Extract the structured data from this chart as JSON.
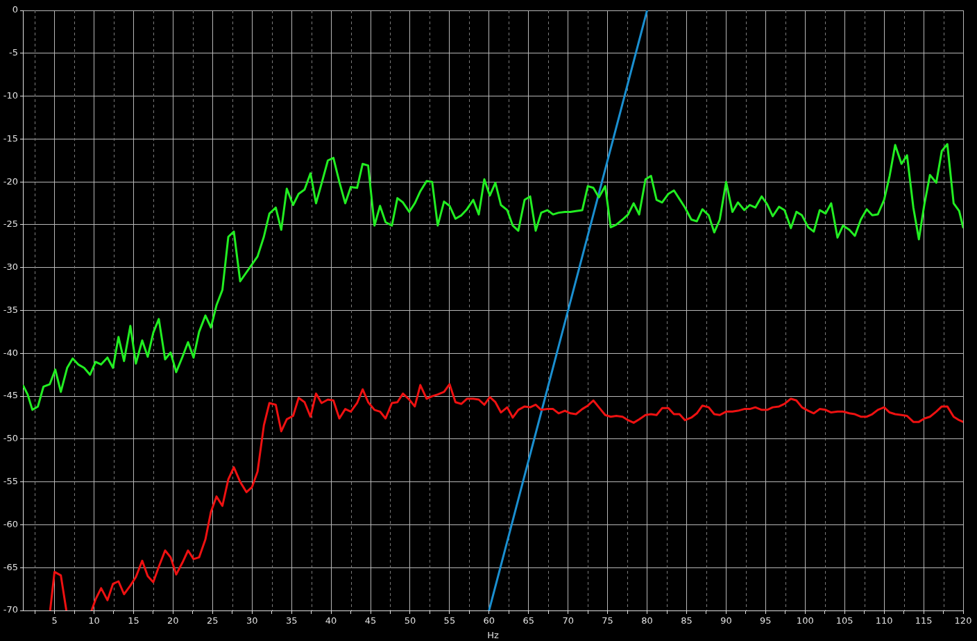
{
  "chart_data": {
    "type": "line",
    "xlabel": "Hz",
    "xlim": [
      1,
      120
    ],
    "ylim": [
      -70,
      0
    ],
    "xticks": [
      {
        "value": 2.5,
        "label": null
      },
      5,
      {
        "value": 7.5,
        "label": null
      },
      10,
      {
        "value": 12.5,
        "label": null
      },
      15,
      {
        "value": 17.5,
        "label": null
      },
      20,
      {
        "value": 22.5,
        "label": null
      },
      25,
      {
        "value": 27.5,
        "label": null
      },
      30,
      {
        "value": 32.5,
        "label": null
      },
      35,
      {
        "value": 37.5,
        "label": null
      },
      40,
      {
        "value": 42.5,
        "label": null
      },
      45,
      {
        "value": 47.5,
        "label": null
      },
      50,
      {
        "value": 52.5,
        "label": null
      },
      55,
      {
        "value": 57.5,
        "label": null
      },
      60,
      {
        "value": 62.5,
        "label": null
      },
      65,
      {
        "value": 67.5,
        "label": null
      },
      70,
      {
        "value": 72.5,
        "label": null
      },
      75,
      {
        "value": 77.5,
        "label": null
      },
      80,
      {
        "value": 82.5,
        "label": null
      },
      85,
      {
        "value": 87.5,
        "label": null
      },
      90,
      {
        "value": 92.5,
        "label": null
      },
      95,
      {
        "value": 97.5,
        "label": null
      },
      100,
      {
        "value": 102.5,
        "label": null
      },
      105,
      {
        "value": 107.5,
        "label": null
      },
      110,
      {
        "value": 112.5,
        "label": null
      },
      115,
      {
        "value": 117.5,
        "label": null
      },
      120
    ],
    "yticks": [
      0,
      -5,
      -10,
      -15,
      -20,
      -25,
      -30,
      -35,
      -40,
      -45,
      -50,
      -55,
      -60,
      -65,
      -70
    ],
    "grid": true,
    "legend": false,
    "marker": "none",
    "line_style": "solid",
    "series": [
      {
        "color": "#22ee22",
        "x": [
          1.05,
          1.6,
          2.2,
          2.9,
          3.6,
          4.4,
          5.1,
          5.8,
          6.6,
          7.3,
          8.0,
          8.75,
          9.5,
          10.2,
          10.9,
          11.7,
          12.4,
          13.1,
          13.8,
          14.6,
          15.3,
          16.1,
          16.8,
          17.5,
          18.2,
          19.0,
          19.7,
          20.4,
          21.2,
          21.9,
          22.6,
          23.3,
          24.1,
          24.8,
          25.5,
          26.25,
          27.0,
          27.7,
          28.5,
          30.7,
          31.5,
          32.2,
          33.0,
          33.7,
          34.4,
          35.2,
          35.9,
          36.65,
          37.4,
          38.1,
          38.8,
          39.6,
          40.3,
          41.05,
          41.8,
          42.5,
          43.3,
          44.0,
          44.7,
          45.5,
          46.2,
          46.9,
          47.7,
          48.4,
          49.1,
          49.9,
          50.6,
          51.3,
          52.1,
          52.8,
          53.5,
          54.3,
          55.0,
          55.75,
          56.5,
          57.2,
          58.0,
          58.7,
          59.4,
          60.1,
          60.8,
          61.5,
          62.3,
          63.0,
          63.7,
          64.5,
          65.2,
          65.9,
          66.6,
          67.4,
          68.1,
          68.8,
          69.6,
          70.3,
          71.0,
          71.8,
          72.5,
          73.2,
          73.9,
          74.7,
          75.4,
          76.1,
          76.9,
          77.6,
          78.3,
          79.0,
          79.8,
          80.5,
          81.2,
          81.9,
          82.7,
          83.4,
          84.1,
          84.8,
          85.6,
          86.3,
          87.0,
          87.8,
          88.5,
          89.2,
          90.0,
          90.8,
          91.5,
          92.3,
          93.0,
          93.7,
          94.5,
          95.2,
          95.9,
          96.7,
          97.4,
          98.2,
          98.9,
          99.6,
          100.4,
          101.1,
          101.85,
          102.6,
          103.3,
          104.1,
          104.8,
          105.6,
          106.3,
          107.05,
          107.8,
          108.5,
          109.2,
          110.0,
          110.7,
          111.4,
          112.2,
          112.9,
          113.7,
          114.4,
          115.1,
          115.8,
          116.6,
          117.3,
          118.0,
          118.8,
          119.5,
          120
        ],
        "values": [
          -43.8,
          -44.8,
          -46.6,
          -46.2,
          -43.9,
          -43.6,
          -41.9,
          -44.5,
          -41.7,
          -40.6,
          -41.3,
          -41.7,
          -42.5,
          -41.0,
          -41.3,
          -40.5,
          -41.7,
          -38.1,
          -40.9,
          -36.8,
          -41.2,
          -38.5,
          -40.4,
          -37.6,
          -36.0,
          -40.7,
          -39.9,
          -42.2,
          -40.4,
          -38.7,
          -40.5,
          -37.5,
          -35.6,
          -37.0,
          -34.4,
          -32.6,
          -26.4,
          -25.8,
          -31.6,
          -28.7,
          -26.4,
          -23.7,
          -23.0,
          -25.6,
          -20.8,
          -22.7,
          -21.4,
          -20.9,
          -19.0,
          -22.5,
          -20.2,
          -17.5,
          -17.2,
          -20.0,
          -22.5,
          -20.6,
          -20.7,
          -17.9,
          -18.1,
          -25.1,
          -22.8,
          -24.7,
          -25.1,
          -21.9,
          -22.4,
          -23.5,
          -22.5,
          -21.1,
          -19.9,
          -20.0,
          -25.1,
          -22.3,
          -22.8,
          -24.3,
          -23.9,
          -23.2,
          -22.1,
          -23.8,
          -19.7,
          -21.6,
          -20.1,
          -22.7,
          -23.3,
          -25.1,
          -25.7,
          -22.1,
          -21.7,
          -25.7,
          -23.6,
          -23.3,
          -23.8,
          -23.6,
          -23.5,
          -23.5,
          -23.4,
          -23.3,
          -20.5,
          -20.7,
          -21.8,
          -20.5,
          -25.3,
          -25.0,
          -24.4,
          -23.8,
          -22.5,
          -23.8,
          -19.7,
          -19.3,
          -22.1,
          -22.4,
          -21.4,
          -21.0,
          -22.0,
          -23.0,
          -24.4,
          -24.6,
          -23.2,
          -23.9,
          -25.9,
          -24.4,
          -20.0,
          -23.5,
          -22.4,
          -23.3,
          -22.7,
          -23.0,
          -21.7,
          -22.6,
          -24.0,
          -22.9,
          -23.3,
          -25.4,
          -23.5,
          -23.9,
          -25.3,
          -25.8,
          -23.3,
          -23.7,
          -22.5,
          -26.5,
          -25.1,
          -25.6,
          -26.3,
          -24.4,
          -23.2,
          -23.9,
          -23.8,
          -22.1,
          -19.3,
          -15.7,
          -17.9,
          -16.9,
          -23.0,
          -26.7,
          -22.6,
          -19.2,
          -20.1,
          -16.4,
          -15.6,
          -22.5,
          -23.4,
          -25.3
        ]
      },
      {
        "color": "#ee1111",
        "x": [
          4.45,
          5.0,
          5.8,
          6.5,
          8.0,
          9.7,
          10.2,
          10.9,
          11.7,
          12.4,
          13.1,
          13.8,
          14.6,
          15.3,
          16.1,
          16.8,
          17.5,
          18.2,
          19.0,
          19.7,
          20.4,
          21.2,
          21.9,
          22.6,
          23.3,
          24.1,
          24.8,
          25.5,
          26.25,
          27.0,
          27.7,
          28.5,
          29.3,
          30.0,
          30.7,
          31.5,
          32.2,
          33.0,
          33.7,
          34.4,
          35.2,
          35.9,
          36.65,
          37.4,
          38.1,
          38.8,
          39.6,
          40.3,
          41.05,
          41.8,
          42.5,
          43.3,
          44.0,
          44.7,
          45.5,
          46.2,
          46.9,
          47.7,
          48.4,
          49.1,
          49.9,
          50.6,
          51.3,
          52.1,
          52.8,
          53.5,
          54.3,
          55.0,
          55.75,
          56.5,
          57.2,
          58.0,
          58.7,
          59.4,
          60.1,
          60.8,
          61.5,
          62.3,
          63.0,
          63.7,
          64.5,
          65.2,
          65.9,
          66.6,
          67.4,
          68.1,
          68.8,
          69.6,
          70.3,
          71.0,
          71.8,
          72.5,
          73.2,
          73.9,
          74.7,
          75.4,
          76.1,
          76.9,
          77.6,
          78.3,
          79.0,
          79.8,
          80.5,
          81.2,
          81.9,
          82.7,
          83.4,
          84.1,
          84.8,
          85.6,
          86.3,
          87.0,
          87.8,
          88.5,
          89.2,
          90.0,
          90.8,
          91.5,
          92.3,
          93.0,
          93.7,
          94.5,
          95.2,
          95.9,
          96.7,
          97.4,
          98.2,
          98.9,
          99.6,
          100.4,
          101.1,
          101.85,
          102.6,
          103.3,
          104.1,
          104.8,
          105.6,
          106.3,
          107.05,
          107.8,
          108.5,
          109.2,
          110.0,
          110.7,
          111.4,
          112.2,
          112.9,
          113.7,
          114.4,
          115.1,
          115.8,
          116.6,
          117.3,
          118.0,
          118.8,
          119.5,
          120
        ],
        "values": [
          -70,
          -65.5,
          -65.9,
          -70,
          null,
          -70,
          -68.7,
          -67.4,
          -68.8,
          -66.9,
          -66.6,
          -68.1,
          -67.1,
          -66.1,
          -64.2,
          -66.0,
          -66.7,
          -64.9,
          -63.0,
          -63.8,
          -65.8,
          -64.4,
          -63.0,
          -64.0,
          -63.8,
          -61.7,
          -58.5,
          -56.7,
          -57.8,
          -54.7,
          -53.3,
          -55.0,
          -56.2,
          -55.6,
          -53.8,
          -48.4,
          -45.8,
          -46.0,
          -49.1,
          -47.7,
          -47.3,
          -45.2,
          -45.7,
          -47.4,
          -44.7,
          -45.8,
          -45.4,
          -45.5,
          -47.6,
          -46.5,
          -46.8,
          -45.8,
          -44.2,
          -45.7,
          -46.6,
          -46.8,
          -47.6,
          -45.8,
          -45.7,
          -44.7,
          -45.4,
          -46.2,
          -43.7,
          -45.3,
          -45.0,
          -44.8,
          -44.5,
          -43.6,
          -45.7,
          -45.9,
          -45.3,
          -45.3,
          -45.4,
          -46.0,
          -45.1,
          -45.7,
          -46.9,
          -46.3,
          -47.5,
          -46.6,
          -46.2,
          -46.3,
          -46.0,
          -46.6,
          -46.5,
          -46.5,
          -47.0,
          -46.7,
          -47.0,
          -47.1,
          -46.5,
          -46.1,
          -45.5,
          -46.3,
          -47.2,
          -47.4,
          -47.3,
          -47.4,
          -47.8,
          -48.1,
          -47.7,
          -47.2,
          -47.1,
          -47.2,
          -46.4,
          -46.4,
          -47.1,
          -47.1,
          -47.8,
          -47.5,
          -47.0,
          -46.1,
          -46.3,
          -47.1,
          -47.2,
          -46.8,
          -46.8,
          -46.7,
          -46.5,
          -46.5,
          -46.3,
          -46.6,
          -46.6,
          -46.3,
          -46.2,
          -45.9,
          -45.3,
          -45.5,
          -46.3,
          -46.7,
          -47.0,
          -46.5,
          -46.6,
          -46.9,
          -46.8,
          -46.8,
          -47.0,
          -47.1,
          -47.4,
          -47.4,
          -47.1,
          -46.6,
          -46.3,
          -46.9,
          -47.1,
          -47.2,
          -47.3,
          -48.0,
          -48.0,
          -47.6,
          -47.4,
          -46.8,
          -46.2,
          -46.2,
          -47.4,
          -47.8,
          -48.0
        ]
      },
      {
        "color": "#1a8fd0",
        "x": [
          60,
          80
        ],
        "values": [
          -70,
          0
        ]
      }
    ]
  }
}
